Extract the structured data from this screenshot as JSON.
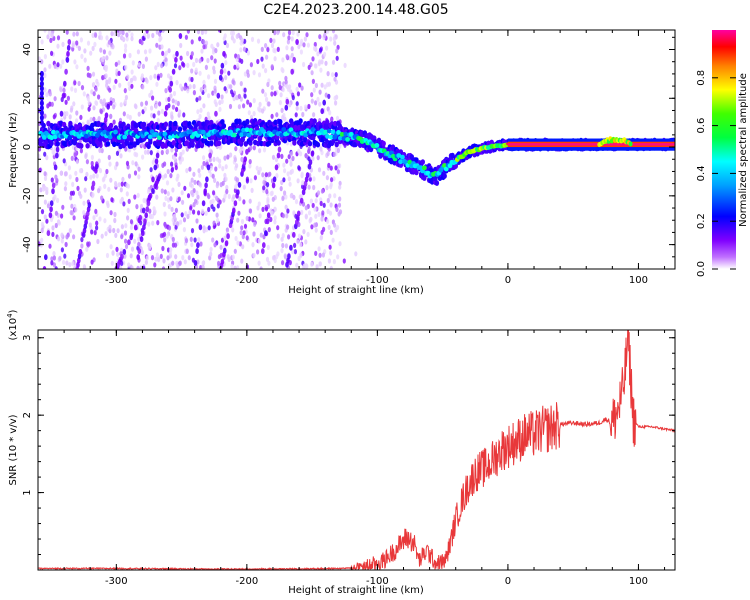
{
  "title": "C2E4.2023.200.14.48.G05",
  "chart_data": [
    {
      "type": "heatmap",
      "xlabel": "Height of straight line (km)",
      "ylabel": "Frequency (Hz)",
      "xlim": [
        -360,
        128
      ],
      "ylim": [
        -50,
        48
      ],
      "xticks": [
        -300,
        -200,
        -100,
        0,
        100
      ],
      "xtick_labels": [
        "-300",
        "-200",
        "-100",
        "0",
        "100"
      ],
      "yticks": [
        -40,
        -20,
        0,
        20,
        40
      ],
      "ytick_labels": [
        "-40",
        "-20",
        "0",
        "20",
        "40"
      ],
      "colorbar": {
        "label": "Normalized spectral amplitude",
        "range": [
          0,
          1
        ],
        "ticks": [
          0.0,
          0.2,
          0.4,
          0.6,
          0.8
        ],
        "tick_labels": [
          "0.0",
          "0.2",
          "0.4",
          "0.6",
          "0.8"
        ],
        "colormap": [
          "#ffffff",
          "#8000ff",
          "#0000ff",
          "#00ffff",
          "#00ff00",
          "#ffff00",
          "#ff0000",
          "#ff00a0"
        ]
      },
      "ridge": {
        "description_points": [
          {
            "x": -355,
            "y": 5
          },
          {
            "x": -300,
            "y": 5
          },
          {
            "x": -250,
            "y": 5
          },
          {
            "x": -200,
            "y": 6
          },
          {
            "x": -150,
            "y": 6
          },
          {
            "x": -130,
            "y": 5
          },
          {
            "x": -110,
            "y": 3
          },
          {
            "x": -100,
            "y": 0
          },
          {
            "x": -85,
            "y": -4
          },
          {
            "x": -70,
            "y": -8
          },
          {
            "x": -55,
            "y": -12
          },
          {
            "x": -45,
            "y": -7
          },
          {
            "x": -30,
            "y": -2
          },
          {
            "x": -15,
            "y": 0
          },
          {
            "x": 0,
            "y": 1
          },
          {
            "x": 50,
            "y": 1
          },
          {
            "x": 80,
            "y": 1
          },
          {
            "x": 128,
            "y": 1
          }
        ],
        "noise_region_x": [
          -360,
          -128
        ]
      }
    },
    {
      "type": "line",
      "xlabel": "Height of straight line (km)",
      "ylabel": "SNR (10 * v/v)",
      "scale_label": "(x10^4)",
      "xlim": [
        -360,
        128
      ],
      "ylim": [
        0,
        3.1
      ],
      "xticks": [
        -300,
        -200,
        -100,
        0,
        100
      ],
      "xtick_labels": [
        "-300",
        "-200",
        "-100",
        "0",
        "100"
      ],
      "yticks": [
        1,
        2,
        3
      ],
      "ytick_labels": [
        "1",
        "2",
        "3"
      ],
      "color": "#e8383a",
      "series": [
        {
          "x": [
            -360,
            -300,
            -200,
            -130,
            -110,
            -95,
            -85,
            -78,
            -72,
            -68,
            -62,
            -55,
            -48,
            -44,
            -40,
            -35,
            -30,
            -25,
            -20,
            -15,
            -10,
            -5,
            0,
            5,
            10,
            15,
            20,
            25,
            30,
            35,
            40,
            50,
            60,
            70,
            75,
            80,
            85,
            88,
            90,
            92,
            94,
            96,
            100,
            110,
            128
          ],
          "y": [
            0.02,
            0.02,
            0.01,
            0.02,
            0.03,
            0.12,
            0.28,
            0.42,
            0.35,
            0.12,
            0.25,
            0.08,
            0.12,
            0.35,
            0.65,
            0.9,
            1.1,
            1.25,
            1.3,
            1.35,
            1.45,
            1.55,
            1.6,
            1.65,
            1.7,
            1.75,
            1.75,
            1.8,
            1.82,
            1.85,
            1.88,
            1.9,
            1.88,
            1.9,
            1.95,
            1.9,
            2.1,
            2.3,
            2.6,
            3.05,
            2.5,
            1.95,
            1.85,
            1.85,
            1.8
          ]
        }
      ]
    }
  ]
}
